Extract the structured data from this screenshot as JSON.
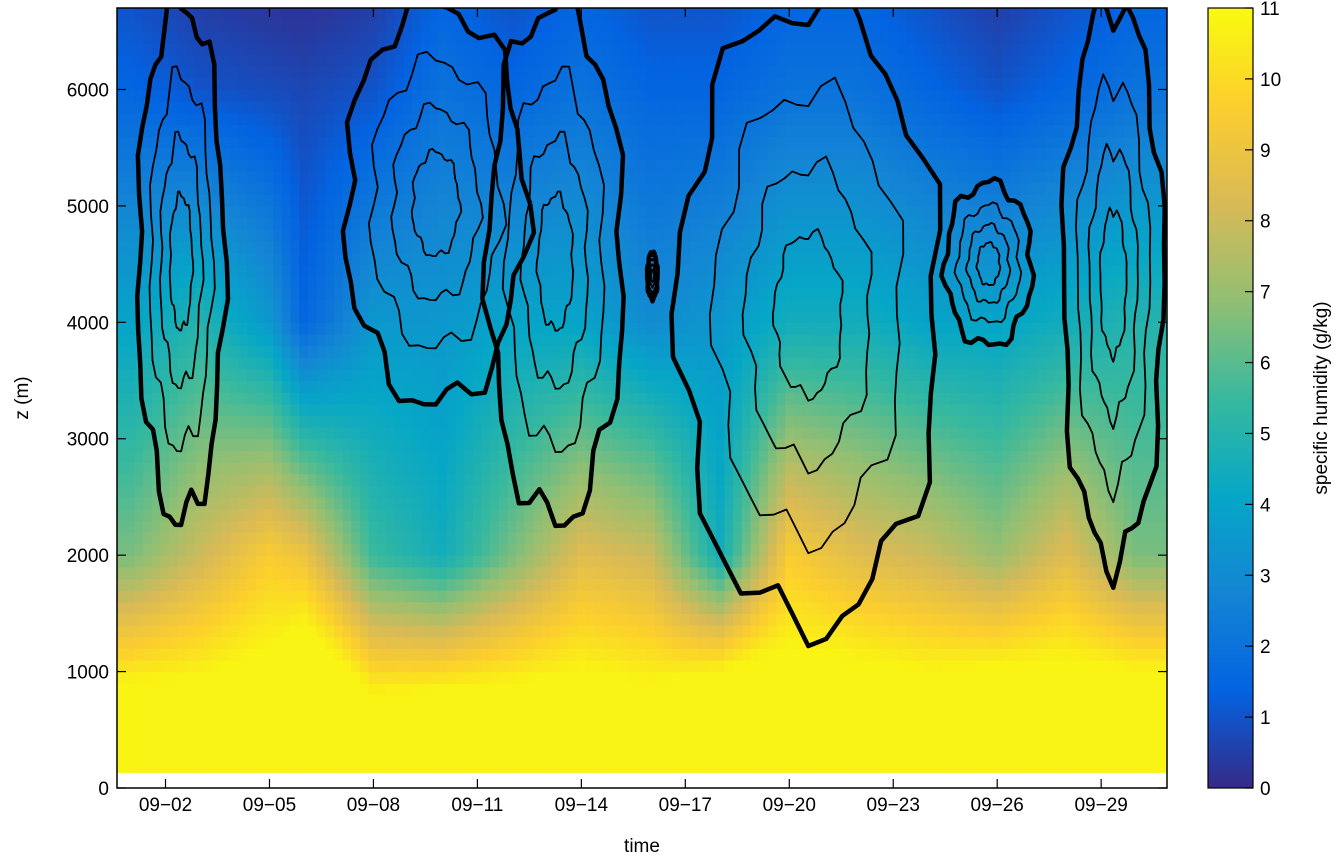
{
  "chart_data": {
    "type": "heatmap",
    "title": "",
    "xlabel": "time",
    "ylabel": "z (m)",
    "colorbar_label": "specific humidity (g/kg)",
    "x_ticks": [
      "09−02",
      "09−05",
      "09−08",
      "09−11",
      "09−14",
      "09−17",
      "09−20",
      "09−23",
      "09−26",
      "09−29"
    ],
    "x_tick_days": [
      2,
      5,
      8,
      11,
      14,
      17,
      20,
      23,
      26,
      29
    ],
    "xlim_days": [
      0.6,
      30.9
    ],
    "y_ticks": [
      "0",
      "1000",
      "2000",
      "3000",
      "4000",
      "5000",
      "6000"
    ],
    "y_tick_values": [
      0,
      1000,
      2000,
      3000,
      4000,
      5000,
      6000
    ],
    "ylim": [
      0,
      6700
    ],
    "colorbar_ticks": [
      "0",
      "1",
      "2",
      "3",
      "4",
      "5",
      "6",
      "7",
      "8",
      "9",
      "10",
      "11"
    ],
    "colorbar_tick_values": [
      0,
      1,
      2,
      3,
      4,
      5,
      6,
      7,
      8,
      9,
      10,
      11
    ],
    "clim": [
      0,
      11
    ],
    "colormap": [
      "#352a87",
      "#0363e1",
      "#1485d4",
      "#06a7c6",
      "#38b99e",
      "#92bf73",
      "#d9ba56",
      "#fcce2e",
      "#f9fb0e"
    ],
    "grid": false,
    "surface_floor_m": 130,
    "humidity_profile": [
      {
        "time": "09-01",
        "day": 1,
        "q_2000m": 6.5,
        "q_4000m": 4.0,
        "q_6000m": 1.5,
        "top_moist_layer_m": 900
      },
      {
        "time": "09-03",
        "day": 3,
        "q_2000m": 8.0,
        "q_4000m": 5.0,
        "q_6000m": 1.0,
        "top_moist_layer_m": 950
      },
      {
        "time": "09-05",
        "day": 5,
        "q_2000m": 9.5,
        "q_4000m": 3.5,
        "q_6000m": 0.8,
        "top_moist_layer_m": 1200
      },
      {
        "time": "09-06",
        "day": 6,
        "q_2000m": 9.0,
        "q_4000m": 1.5,
        "q_6000m": 0.7,
        "top_moist_layer_m": 1400
      },
      {
        "time": "09-08",
        "day": 8,
        "q_2000m": 5.5,
        "q_4000m": 3.5,
        "q_6000m": 1.0,
        "top_moist_layer_m": 800
      },
      {
        "time": "09-10",
        "day": 10,
        "q_2000m": 4.5,
        "q_4000m": 3.5,
        "q_6000m": 2.0,
        "top_moist_layer_m": 850
      },
      {
        "time": "09-12",
        "day": 12,
        "q_2000m": 6.5,
        "q_4000m": 4.0,
        "q_6000m": 1.5,
        "top_moist_layer_m": 900
      },
      {
        "time": "09-14",
        "day": 14,
        "q_2000m": 8.5,
        "q_4000m": 4.0,
        "q_6000m": 2.0,
        "top_moist_layer_m": 1000
      },
      {
        "time": "09-16",
        "day": 16,
        "q_2000m": 8.0,
        "q_4000m": 3.0,
        "q_6000m": 1.5,
        "top_moist_layer_m": 900
      },
      {
        "time": "09-18",
        "day": 18,
        "q_2000m": 4.5,
        "q_4000m": 3.5,
        "q_6000m": 1.5,
        "top_moist_layer_m": 1000
      },
      {
        "time": "09-20",
        "day": 20,
        "q_2000m": 9.5,
        "q_4000m": 4.5,
        "q_6000m": 2.0,
        "top_moist_layer_m": 1200
      },
      {
        "time": "09-22",
        "day": 22,
        "q_2000m": 8.5,
        "q_4000m": 4.5,
        "q_6000m": 2.0,
        "top_moist_layer_m": 1100
      },
      {
        "time": "09-24",
        "day": 24,
        "q_2000m": 8.0,
        "q_4000m": 4.0,
        "q_6000m": 1.5,
        "top_moist_layer_m": 1000
      },
      {
        "time": "09-26",
        "day": 26,
        "q_2000m": 7.0,
        "q_4000m": 4.0,
        "q_6000m": 1.0,
        "top_moist_layer_m": 1050
      },
      {
        "time": "09-28",
        "day": 28,
        "q_2000m": 8.5,
        "q_4000m": 4.5,
        "q_6000m": 1.5,
        "top_moist_layer_m": 1100
      },
      {
        "time": "09-30",
        "day": 30,
        "q_2000m": 6.5,
        "q_4000m": 5.0,
        "q_6000m": 2.0,
        "top_moist_layer_m": 1000
      }
    ],
    "contour_regions": [
      {
        "start": "09-01",
        "end": "09-03",
        "start_day": 1.2,
        "end_day": 3.7,
        "base_m": 2300,
        "top_m": 6700
      },
      {
        "start": "09-07",
        "end": "09-12",
        "start_day": 7.2,
        "end_day": 12.4,
        "base_m": 3300,
        "top_m": 6700
      },
      {
        "start": "09-11",
        "end": "09-15",
        "start_day": 11.3,
        "end_day": 15.2,
        "base_m": 2300,
        "top_m": 6700
      },
      {
        "start": "09-16",
        "end": "09-16",
        "start_day": 15.9,
        "end_day": 16.2,
        "base_m": 4200,
        "top_m": 4600
      },
      {
        "start": "09-17",
        "end": "09-24",
        "start_day": 16.8,
        "end_day": 24.3,
        "base_m": 1400,
        "top_m": 6700
      },
      {
        "start": "09-25",
        "end": "09-27",
        "start_day": 24.5,
        "end_day": 27.0,
        "base_m": 3800,
        "top_m": 5200
      },
      {
        "start": "09-28",
        "end": "09-30",
        "start_day": 27.9,
        "end_day": 30.8,
        "base_m": 1950,
        "top_m": 6700
      }
    ]
  }
}
